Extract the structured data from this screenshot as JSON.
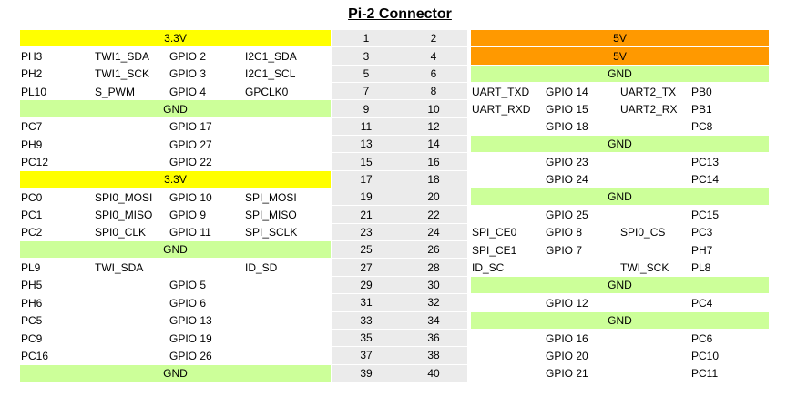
{
  "title": "Pi-2 Connector",
  "colors": {
    "v33": "#FFFF00",
    "v5": "#FF9900",
    "gnd": "#CCFF99",
    "pin_bg": "#EBEBEB"
  },
  "columns": {
    "left": [
      "pin-name",
      "signal-name",
      "gpio-number",
      "alt-function"
    ],
    "center": [
      "odd-pin-number",
      "even-pin-number"
    ],
    "right": [
      "signal-name",
      "gpio-number",
      "alt-function",
      "pin-name"
    ]
  },
  "rows": [
    {
      "pins": [
        "1",
        "2"
      ],
      "left": {
        "band": "3.3V",
        "band_color": "v33"
      },
      "right": {
        "band": "5V",
        "band_color": "v5"
      }
    },
    {
      "pins": [
        "3",
        "4"
      ],
      "left": {
        "cells": [
          "PH3",
          "TWI1_SDA",
          "GPIO 2",
          "I2C1_SDA"
        ]
      },
      "right": {
        "band": "5V",
        "band_color": "v5"
      }
    },
    {
      "pins": [
        "5",
        "6"
      ],
      "left": {
        "cells": [
          "PH2",
          "TWI1_SCK",
          "GPIO 3",
          "I2C1_SCL"
        ]
      },
      "right": {
        "band": "GND",
        "band_color": "gnd"
      }
    },
    {
      "pins": [
        "7",
        "8"
      ],
      "left": {
        "cells": [
          "PL10",
          "S_PWM",
          "GPIO 4",
          "GPCLK0"
        ]
      },
      "right": {
        "cells": [
          "UART_TXD",
          "GPIO 14",
          "UART2_TX",
          "PB0"
        ]
      }
    },
    {
      "pins": [
        "9",
        "10"
      ],
      "left": {
        "band": "GND",
        "band_color": "gnd"
      },
      "right": {
        "cells": [
          "UART_RXD",
          "GPIO 15",
          "UART2_RX",
          "PB1"
        ]
      }
    },
    {
      "pins": [
        "11",
        "12"
      ],
      "left": {
        "cells": [
          "PC7",
          "",
          "GPIO 17",
          ""
        ]
      },
      "right": {
        "cells": [
          "",
          "GPIO 18",
          "",
          "PC8"
        ]
      }
    },
    {
      "pins": [
        "13",
        "14"
      ],
      "left": {
        "cells": [
          "PH9",
          "",
          "GPIO 27",
          ""
        ]
      },
      "right": {
        "band": "GND",
        "band_color": "gnd"
      }
    },
    {
      "pins": [
        "15",
        "16"
      ],
      "left": {
        "cells": [
          "PC12",
          "",
          "GPIO 22",
          ""
        ]
      },
      "right": {
        "cells": [
          "",
          "GPIO 23",
          "",
          "PC13"
        ]
      }
    },
    {
      "pins": [
        "17",
        "18"
      ],
      "left": {
        "band": "3.3V",
        "band_color": "v33"
      },
      "right": {
        "cells": [
          "",
          "GPIO 24",
          "",
          "PC14"
        ]
      }
    },
    {
      "pins": [
        "19",
        "20"
      ],
      "left": {
        "cells": [
          "PC0",
          "SPI0_MOSI",
          "GPIO 10",
          "SPI_MOSI"
        ]
      },
      "right": {
        "band": "GND",
        "band_color": "gnd"
      }
    },
    {
      "pins": [
        "21",
        "22"
      ],
      "left": {
        "cells": [
          "PC1",
          "SPI0_MISO",
          "GPIO 9",
          "SPI_MISO"
        ]
      },
      "right": {
        "cells": [
          "",
          "GPIO 25",
          "",
          "PC15"
        ]
      }
    },
    {
      "pins": [
        "23",
        "24"
      ],
      "left": {
        "cells": [
          "PC2",
          "SPI0_CLK",
          "GPIO 11",
          "SPI_SCLK"
        ]
      },
      "right": {
        "cells": [
          "SPI_CE0",
          "GPIO 8",
          "SPI0_CS",
          "PC3"
        ]
      }
    },
    {
      "pins": [
        "25",
        "26"
      ],
      "left": {
        "band": "GND",
        "band_color": "gnd"
      },
      "right": {
        "cells": [
          "SPI_CE1",
          "GPIO 7",
          "",
          "PH7"
        ]
      }
    },
    {
      "pins": [
        "27",
        "28"
      ],
      "left": {
        "cells": [
          "PL9",
          "TWI_SDA",
          "",
          "ID_SD"
        ]
      },
      "right": {
        "cells": [
          "ID_SC",
          "",
          "TWI_SCK",
          "PL8"
        ]
      }
    },
    {
      "pins": [
        "29",
        "30"
      ],
      "left": {
        "cells": [
          "PH5",
          "",
          "GPIO 5",
          ""
        ]
      },
      "right": {
        "band": "GND",
        "band_color": "gnd"
      }
    },
    {
      "pins": [
        "31",
        "32"
      ],
      "left": {
        "cells": [
          "PH6",
          "",
          "GPIO 6",
          ""
        ]
      },
      "right": {
        "cells": [
          "",
          "GPIO 12",
          "",
          "PC4"
        ]
      }
    },
    {
      "pins": [
        "33",
        "34"
      ],
      "left": {
        "cells": [
          "PC5",
          "",
          "GPIO 13",
          ""
        ]
      },
      "right": {
        "band": "GND",
        "band_color": "gnd"
      }
    },
    {
      "pins": [
        "35",
        "36"
      ],
      "left": {
        "cells": [
          "PC9",
          "",
          "GPIO 19",
          ""
        ]
      },
      "right": {
        "cells": [
          "",
          "GPIO 16",
          "",
          "PC6"
        ]
      }
    },
    {
      "pins": [
        "37",
        "38"
      ],
      "left": {
        "cells": [
          "PC16",
          "",
          "GPIO 26",
          ""
        ]
      },
      "right": {
        "cells": [
          "",
          "GPIO 20",
          "",
          "PC10"
        ]
      }
    },
    {
      "pins": [
        "39",
        "40"
      ],
      "left": {
        "band": "GND",
        "band_color": "gnd"
      },
      "right": {
        "cells": [
          "",
          "GPIO 21",
          "",
          "PC11"
        ]
      }
    }
  ]
}
